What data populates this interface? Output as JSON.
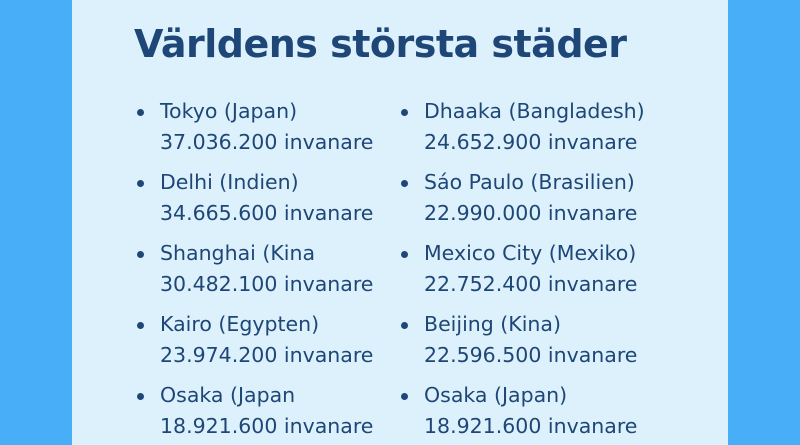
{
  "title": "Världens största städer",
  "left_column": [
    {
      "city": "Tokyo (Japan)",
      "population": "37.036.200 invanare"
    },
    {
      "city": "Delhi (Indien)",
      "population": "34.665.600 invanare"
    },
    {
      "city": "Shanghai (Kina",
      "population": "30.482.100 invanare"
    },
    {
      "city": "Kairo (Egypten)",
      "population": "23.974.200 invanare"
    },
    {
      "city": "Osaka (Japan",
      "population": "18.921.600 invanare"
    }
  ],
  "right_column": [
    {
      "city": "Dhaaka (Bangladesh)",
      "population": "24.652.900 invanare"
    },
    {
      "city": "Sáo Paulo (Brasilien)",
      "population": "22.990.000 invanare"
    },
    {
      "city": "Mexico City (Mexiko)",
      "population": "22.752.400 invanare"
    },
    {
      "city": "Beijing (Kina)",
      "population": "22.596.500 invanare"
    },
    {
      "city": "Osaka (Japan)",
      "population": "18.921.600 invanare"
    }
  ],
  "colors": {
    "page_background": "#47aef7",
    "card_background": "#dcf1fb",
    "text": "#1e4677"
  }
}
